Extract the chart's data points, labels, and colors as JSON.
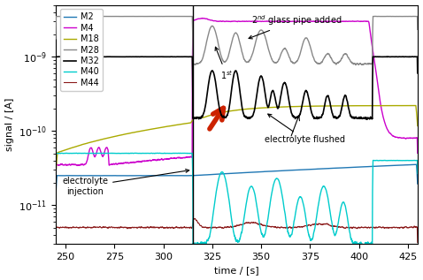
{
  "xlabel": "time / [s]",
  "ylabel": "signal / [A]",
  "xlim": [
    245,
    430
  ],
  "ylim": [
    3e-12,
    5e-09
  ],
  "vline_x": 315,
  "colors": {
    "M2": "#1f77b4",
    "M4": "#cc00cc",
    "M18": "#aaaa00",
    "M28": "#888888",
    "M32": "#000000",
    "M40": "#00cccc",
    "M44": "#8b1a1a"
  },
  "legend_labels": [
    "M2",
    "M4",
    "M18",
    "M28",
    "M32",
    "M40",
    "M44"
  ]
}
